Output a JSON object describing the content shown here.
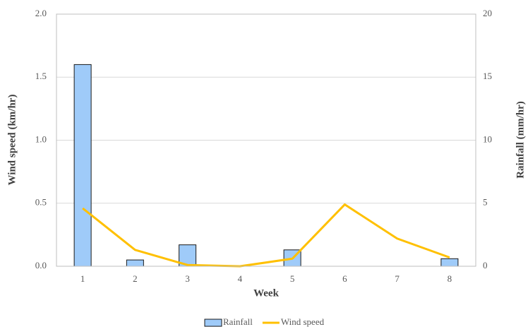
{
  "chart_data": {
    "type": "bar_line",
    "xlabel": "Week",
    "ylabel": "Wind speed (km/hr)",
    "y2label": "Rainfall (mm/hr)",
    "categories": [
      "1",
      "2",
      "3",
      "4",
      "5",
      "6",
      "7",
      "8"
    ],
    "series": [
      {
        "name": "Rainfall",
        "type": "bar",
        "axis": "y2",
        "color": "#9fcbf9",
        "values": [
          16,
          0.5,
          1.7,
          0,
          1.3,
          0,
          0,
          0.6
        ]
      },
      {
        "name": "Wind speed",
        "type": "line",
        "axis": "y",
        "color": "#ffc000",
        "values": [
          0.46,
          0.13,
          0.01,
          0,
          0.06,
          0.49,
          0.22,
          0.07
        ]
      }
    ],
    "ylim": [
      0,
      2
    ],
    "yticks": [
      {
        "value": 0,
        "label": "0.0"
      },
      0.5,
      {
        "value": 1,
        "label": "1.0"
      },
      1.5,
      {
        "value": 2,
        "label": "2.0"
      }
    ],
    "y2lim": [
      0,
      20
    ],
    "y2ticks": [
      0,
      5,
      10,
      15,
      20
    ],
    "grid": true,
    "legend": "bottom"
  }
}
